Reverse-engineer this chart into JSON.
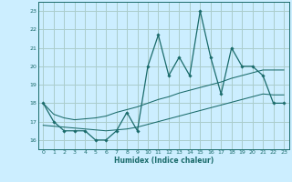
{
  "xlabel": "Humidex (Indice chaleur)",
  "bg_color": "#cceeff",
  "grid_color": "#aacccc",
  "line_color": "#1a6b6b",
  "x_values": [
    0,
    1,
    2,
    3,
    4,
    5,
    6,
    7,
    8,
    9,
    10,
    11,
    12,
    13,
    14,
    15,
    16,
    17,
    18,
    19,
    20,
    21,
    22,
    23
  ],
  "y_main": [
    18,
    17,
    16.5,
    16.5,
    16.5,
    16,
    16,
    16.5,
    17.5,
    16.5,
    20,
    21.7,
    19.5,
    20.5,
    19.5,
    23,
    20.5,
    18.5,
    21,
    20,
    20,
    19.5,
    18,
    18
  ],
  "y_upper": [
    18.0,
    17.4,
    17.2,
    17.1,
    17.15,
    17.2,
    17.3,
    17.5,
    17.65,
    17.8,
    18.0,
    18.2,
    18.35,
    18.55,
    18.7,
    18.85,
    19.0,
    19.15,
    19.35,
    19.5,
    19.65,
    19.8,
    19.8,
    19.8
  ],
  "y_lower": [
    16.8,
    16.75,
    16.7,
    16.65,
    16.6,
    16.55,
    16.5,
    16.55,
    16.6,
    16.7,
    16.85,
    17.0,
    17.15,
    17.3,
    17.45,
    17.6,
    17.75,
    17.9,
    18.05,
    18.2,
    18.35,
    18.5,
    18.45,
    18.45
  ],
  "ylim": [
    15.5,
    23.5
  ],
  "xlim": [
    -0.5,
    23.5
  ],
  "yticks": [
    16,
    17,
    18,
    19,
    20,
    21,
    22,
    23
  ],
  "xticks": [
    0,
    1,
    2,
    3,
    4,
    5,
    6,
    7,
    8,
    9,
    10,
    11,
    12,
    13,
    14,
    15,
    16,
    17,
    18,
    19,
    20,
    21,
    22,
    23
  ]
}
